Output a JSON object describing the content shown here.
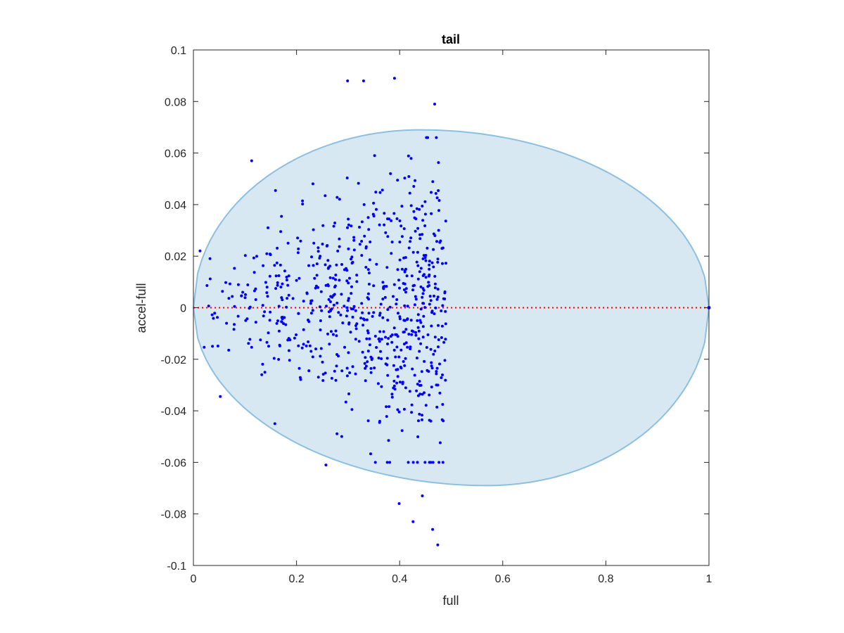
{
  "chart_data": {
    "type": "scatter",
    "title": "tail",
    "xlabel": "full",
    "ylabel": "accel-full",
    "xlim": [
      0,
      1
    ],
    "ylim": [
      -0.1,
      0.1
    ],
    "xticks": [
      "0",
      "0.2",
      "0.4",
      "0.6",
      "0.8",
      "1"
    ],
    "xtick_values": [
      0,
      0.2,
      0.4,
      0.6,
      0.8,
      1
    ],
    "yticks": [
      "-0.1",
      "-0.08",
      "-0.06",
      "-0.04",
      "-0.02",
      "0",
      "0.02",
      "0.04",
      "0.06",
      "0.08",
      "0.1"
    ],
    "ytick_values": [
      -0.1,
      -0.08,
      -0.06,
      -0.04,
      -0.02,
      0,
      0.02,
      0.04,
      0.06,
      0.08,
      0.1
    ],
    "grid": false,
    "colors": {
      "points": "#0000ff",
      "region_fill": "#d8e8f3",
      "region_edge": "#8cbfe0",
      "zero_line": "#ff0000"
    },
    "reference_line": {
      "y": 0,
      "style": "dotted",
      "x_range": [
        0,
        1
      ]
    },
    "region": {
      "shape": "ellipse",
      "center": [
        0.5,
        0
      ],
      "x_extent": [
        0,
        1
      ],
      "y_extent": [
        -0.069,
        0.069
      ],
      "peak_x": 0.44,
      "trough_x": 0.57
    },
    "outliers": [
      [
        0.113,
        0.057
      ],
      [
        0.299,
        0.088
      ],
      [
        0.33,
        0.088
      ],
      [
        0.39,
        0.089
      ],
      [
        0.468,
        0.079
      ],
      [
        0.158,
        -0.045
      ],
      [
        0.257,
        -0.061
      ],
      [
        0.399,
        -0.076
      ],
      [
        0.426,
        -0.083
      ],
      [
        0.444,
        -0.073
      ],
      [
        0.464,
        -0.086
      ],
      [
        0.474,
        -0.092
      ]
    ],
    "cluster": {
      "n_points": 700,
      "x_range": [
        0,
        0.49
      ],
      "y_std": 0.025,
      "note": "dense band of points from x=0 to x≈0.49"
    }
  }
}
